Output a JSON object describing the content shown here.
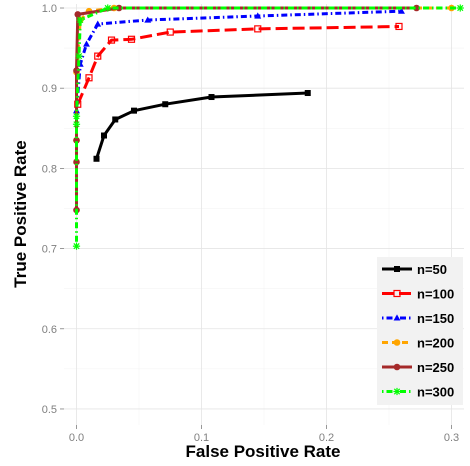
{
  "chart_data": {
    "type": "line",
    "xlabel": "False Positive Rate",
    "ylabel": "True Positive Rate",
    "xlim": [
      -0.01,
      0.31
    ],
    "ylim": [
      0.48,
      1.005
    ],
    "x_ticks": [
      "0.0",
      "0.1",
      "0.2",
      "0.3"
    ],
    "x_tick_values": [
      0.0,
      0.1,
      0.2,
      0.3
    ],
    "y_ticks": [
      "0.5",
      "0.6",
      "0.7",
      "0.8",
      "0.9",
      "1.0"
    ],
    "y_tick_values": [
      0.5,
      0.6,
      0.7,
      0.8,
      0.9,
      1.0
    ],
    "grid": true,
    "legend_position": "bottom-right",
    "series": [
      {
        "name": "n=50",
        "color": "#000000",
        "dash": "solid",
        "marker": "square-filled",
        "points": [
          [
            0.016,
            0.812
          ],
          [
            0.022,
            0.841
          ],
          [
            0.031,
            0.861
          ],
          [
            0.046,
            0.872
          ],
          [
            0.071,
            0.88
          ],
          [
            0.108,
            0.889
          ],
          [
            0.185,
            0.894
          ]
        ]
      },
      {
        "name": "n=100",
        "color": "#ff0000",
        "dash": "longdash",
        "marker": "square-open",
        "points": [
          [
            0.001,
            0.88
          ],
          [
            0.01,
            0.913
          ],
          [
            0.017,
            0.94
          ],
          [
            0.028,
            0.96
          ],
          [
            0.044,
            0.961
          ],
          [
            0.075,
            0.97
          ],
          [
            0.145,
            0.974
          ],
          [
            0.258,
            0.977
          ]
        ]
      },
      {
        "name": "n=150",
        "color": "#0000ff",
        "dash": "dotdash",
        "marker": "triangle-filled",
        "points": [
          [
            0.0,
            0.872
          ],
          [
            0.003,
            0.93
          ],
          [
            0.008,
            0.955
          ],
          [
            0.017,
            0.98
          ],
          [
            0.057,
            0.985
          ],
          [
            0.145,
            0.99
          ],
          [
            0.26,
            0.996
          ]
        ]
      },
      {
        "name": "n=200",
        "color": "#ffa500",
        "dash": "dashed",
        "marker": "circle-filled",
        "points": [
          [
            0.0,
            0.835
          ],
          [
            0.0,
            0.92
          ],
          [
            0.003,
            0.985
          ],
          [
            0.01,
            0.996
          ],
          [
            0.03,
            1.0
          ],
          [
            0.3,
            1.0
          ]
        ]
      },
      {
        "name": "n=250",
        "color": "#a52a2a",
        "dash": "solid",
        "marker": "circle-filled",
        "points": [
          [
            0.0,
            0.748
          ],
          [
            0.0,
            0.808
          ],
          [
            0.0,
            0.835
          ],
          [
            0.0,
            0.922
          ],
          [
            0.001,
            0.992
          ],
          [
            0.034,
            1.0
          ],
          [
            0.272,
            1.0
          ]
        ]
      },
      {
        "name": "n=300",
        "color": "#00ff00",
        "dash": "dotdash",
        "marker": "asterisk",
        "points": [
          [
            0.0,
            0.703
          ],
          [
            0.0,
            0.855
          ],
          [
            0.0,
            0.865
          ],
          [
            0.002,
            0.94
          ],
          [
            0.003,
            0.985
          ],
          [
            0.025,
            1.0
          ],
          [
            0.307,
            1.0
          ]
        ]
      }
    ]
  }
}
